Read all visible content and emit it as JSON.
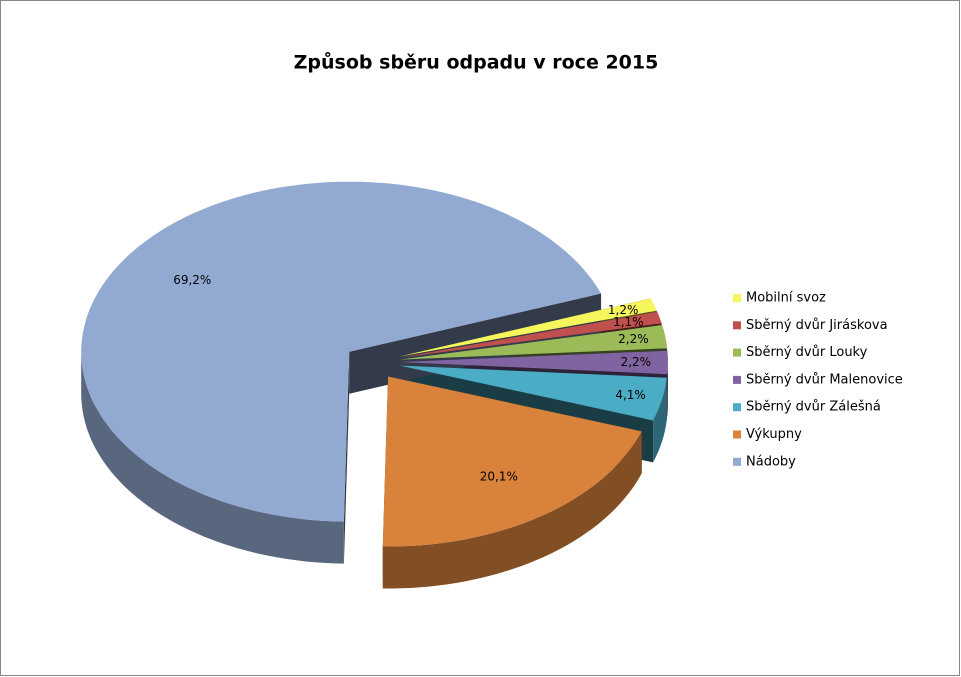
{
  "chart_data": {
    "type": "pie3d",
    "title": "Způsob sběru odpadu v roce 2015",
    "categories": [
      "Mobilní svoz",
      "Sběrný dvůr Jiráskova",
      "Sběrný dvůr Louky",
      "Sběrný dvůr Malenovice",
      "Sběrný dvůr Zálešná",
      "Výkupny",
      "Nádoby"
    ],
    "values": [
      1.2,
      1.1,
      2.2,
      2.2,
      4.1,
      20.1,
      69.2
    ],
    "value_labels": [
      "1,2%",
      "1,1%",
      "2,2%",
      "2,2%",
      "4,1%",
      "20,1%",
      "69,2%"
    ],
    "colors": [
      "#f5f55c",
      "#c0504d",
      "#9bbb59",
      "#8064a2",
      "#4bacc6",
      "#d9823b",
      "#92aad2"
    ],
    "legend": "right"
  }
}
